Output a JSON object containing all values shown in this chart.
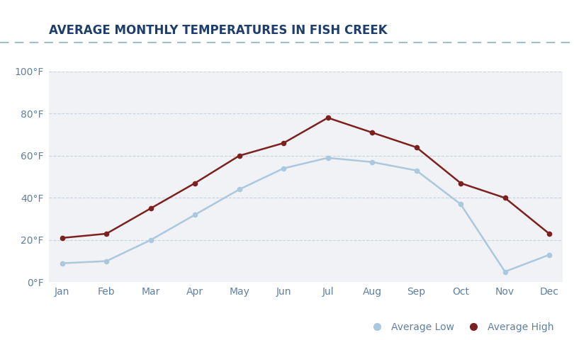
{
  "title": "AVERAGE MONTHLY TEMPERATURES IN FISH CREEK",
  "months": [
    "Jan",
    "Feb",
    "Mar",
    "Apr",
    "May",
    "Jun",
    "Jul",
    "Aug",
    "Sep",
    "Oct",
    "Nov",
    "Dec"
  ],
  "avg_low": [
    9,
    10,
    20,
    32,
    44,
    54,
    59,
    57,
    53,
    37,
    5,
    13
  ],
  "avg_high": [
    21,
    23,
    35,
    47,
    60,
    66,
    78,
    71,
    64,
    47,
    40,
    23
  ],
  "low_color": "#aac8de",
  "high_color": "#7d2020",
  "fig_bg_color": "#ffffff",
  "plot_bg_color": "#f0f2f5",
  "title_color": "#1e3f6e",
  "axis_label_color": "#6080a0",
  "grid_color": "#c8d4de",
  "separator_color": "#a0bece",
  "ylim": [
    0,
    100
  ],
  "yticks": [
    0,
    20,
    40,
    60,
    80,
    100
  ],
  "ytick_labels": [
    "0°F",
    "20°F",
    "40°F",
    "60°F",
    "80°F",
    "100°F"
  ],
  "title_fontsize": 12,
  "tick_fontsize": 10,
  "legend_fontsize": 10
}
